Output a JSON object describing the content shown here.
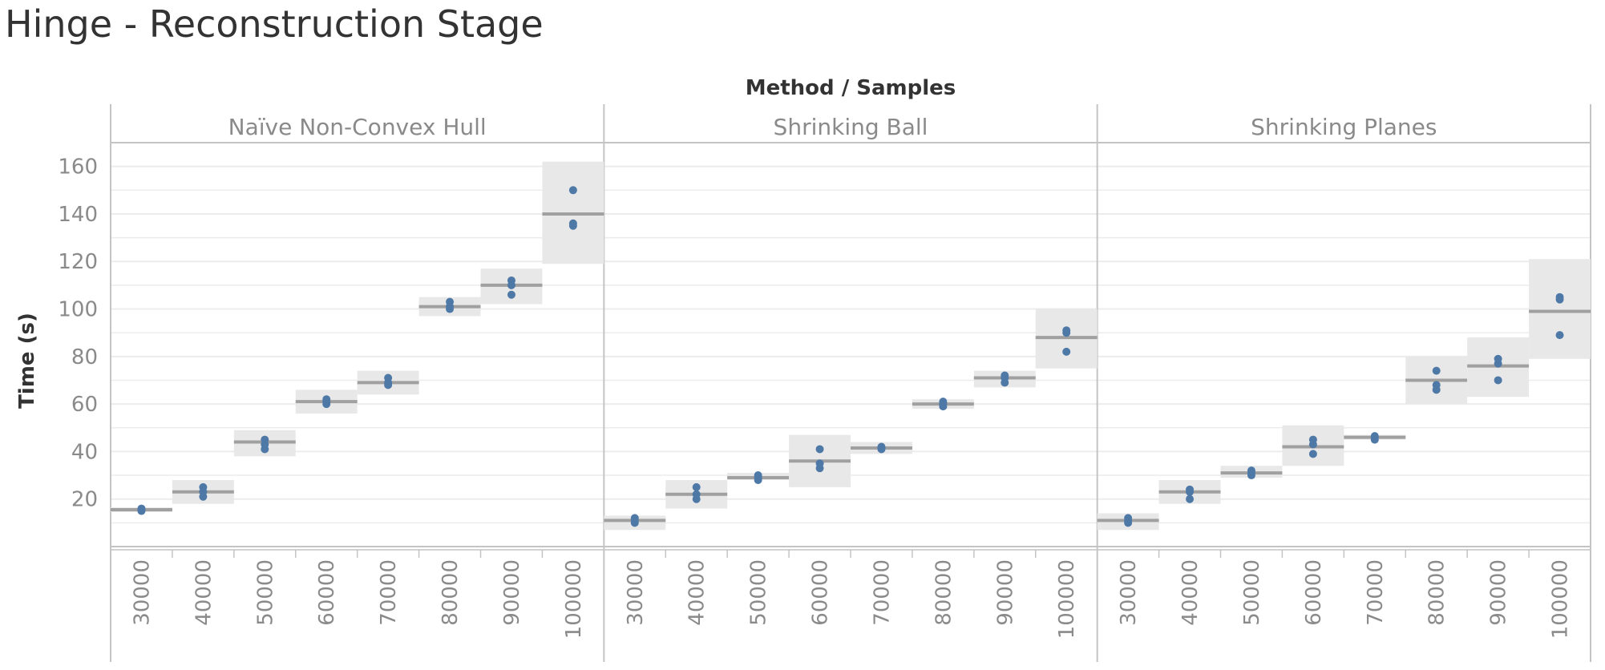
{
  "title": "Hinge - Reconstruction Stage",
  "chart_data": {
    "type": "scatter",
    "subtype": "box-plot with dots, faceted",
    "header": "Method / Samples",
    "ylabel": "Time (s)",
    "ylim": [
      0,
      170
    ],
    "yticks": [
      20,
      40,
      60,
      80,
      100,
      120,
      140,
      160
    ],
    "categories": [
      "30000",
      "40000",
      "50000",
      "60000",
      "70000",
      "80000",
      "90000",
      "100000"
    ],
    "colors": {
      "dot": "#4e79a7",
      "median": "#a0a0a0",
      "box": "#e8e8e8",
      "grid": "#ececec",
      "axis": "#c4c4c4"
    },
    "panels": [
      {
        "name": "Naïve Non-Convex Hull",
        "groups": [
          {
            "x": "30000",
            "points": [
              15,
              16,
              15.5
            ],
            "median": 15.5,
            "box": [
              14.5,
              16.5
            ]
          },
          {
            "x": "40000",
            "points": [
              21,
              23,
              25
            ],
            "median": 23,
            "box": [
              18,
              28
            ]
          },
          {
            "x": "50000",
            "points": [
              41,
              43,
              45
            ],
            "median": 44,
            "box": [
              38,
              49
            ]
          },
          {
            "x": "60000",
            "points": [
              60,
              62,
              61
            ],
            "median": 61,
            "box": [
              56,
              66
            ]
          },
          {
            "x": "70000",
            "points": [
              68,
              69,
              71
            ],
            "median": 69,
            "box": [
              64,
              74
            ]
          },
          {
            "x": "80000",
            "points": [
              100,
              101,
              103
            ],
            "median": 101,
            "box": [
              97,
              105
            ]
          },
          {
            "x": "90000",
            "points": [
              106,
              110,
              112
            ],
            "median": 110,
            "box": [
              102,
              117
            ]
          },
          {
            "x": "100000",
            "points": [
              135,
              136,
              150
            ],
            "median": 140,
            "box": [
              119,
              162
            ]
          }
        ]
      },
      {
        "name": "Shrinking Ball",
        "groups": [
          {
            "x": "30000",
            "points": [
              10,
              11,
              12
            ],
            "median": 11,
            "box": [
              7,
              13
            ]
          },
          {
            "x": "40000",
            "points": [
              20,
              22,
              25
            ],
            "median": 22,
            "box": [
              16,
              28
            ]
          },
          {
            "x": "50000",
            "points": [
              28,
              29,
              30
            ],
            "median": 29,
            "box": [
              28,
              31
            ]
          },
          {
            "x": "60000",
            "points": [
              33,
              35,
              41
            ],
            "median": 36,
            "box": [
              25,
              47
            ]
          },
          {
            "x": "70000",
            "points": [
              41,
              42,
              41.5
            ],
            "median": 41.5,
            "box": [
              39,
              44
            ]
          },
          {
            "x": "80000",
            "points": [
              59,
              60,
              61
            ],
            "median": 60,
            "box": [
              58,
              62
            ]
          },
          {
            "x": "90000",
            "points": [
              69,
              71,
              72
            ],
            "median": 71,
            "box": [
              67,
              74
            ]
          },
          {
            "x": "100000",
            "points": [
              82,
              90,
              91
            ],
            "median": 88,
            "box": [
              75,
              100
            ]
          }
        ]
      },
      {
        "name": "Shrinking Planes",
        "groups": [
          {
            "x": "30000",
            "points": [
              10,
              11,
              12
            ],
            "median": 11,
            "box": [
              7,
              14
            ]
          },
          {
            "x": "40000",
            "points": [
              20,
              23,
              24
            ],
            "median": 23,
            "box": [
              18,
              28
            ]
          },
          {
            "x": "50000",
            "points": [
              30,
              31,
              32
            ],
            "median": 31,
            "box": [
              29,
              34
            ]
          },
          {
            "x": "60000",
            "points": [
              39,
              43,
              45
            ],
            "median": 42,
            "box": [
              34,
              51
            ]
          },
          {
            "x": "70000",
            "points": [
              45,
              46,
              46.5
            ],
            "median": 46,
            "box": [
              45,
              47
            ]
          },
          {
            "x": "80000",
            "points": [
              66,
              68,
              74
            ],
            "median": 70,
            "box": [
              60,
              80
            ]
          },
          {
            "x": "90000",
            "points": [
              70,
              77,
              79
            ],
            "median": 76,
            "box": [
              63,
              88
            ]
          },
          {
            "x": "100000",
            "points": [
              89,
              104,
              105
            ],
            "median": 99,
            "box": [
              79,
              121
            ]
          }
        ]
      }
    ]
  }
}
